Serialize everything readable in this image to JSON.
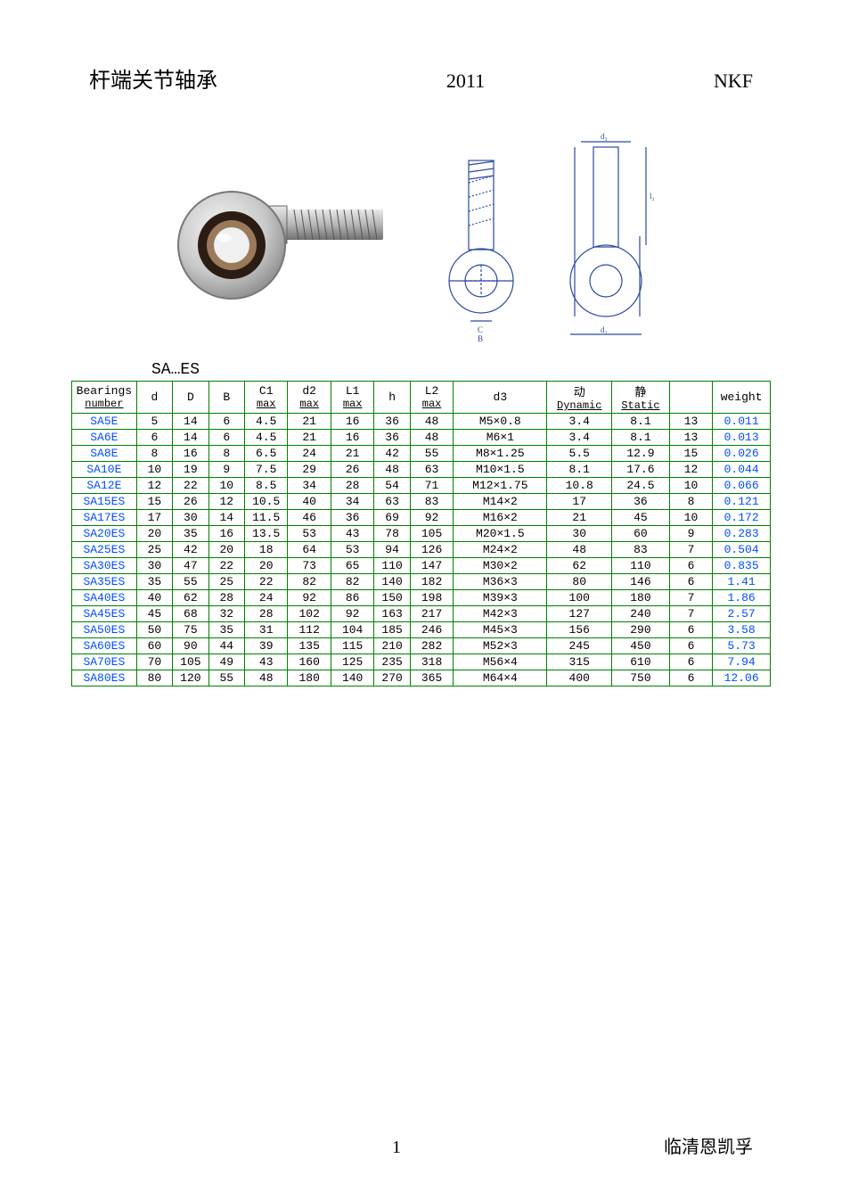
{
  "header": {
    "title_cn": "杆端关节轴承",
    "year": "2011",
    "brand": "NKF"
  },
  "series_label": "SA…ES",
  "table": {
    "border_color": "#008000",
    "link_color": "#004eff",
    "columns": [
      {
        "label_line1": "Bearings",
        "label_line2": "number",
        "underline2": true
      },
      {
        "label_line1": "d"
      },
      {
        "label_line1": "D"
      },
      {
        "label_line1": "B"
      },
      {
        "label_line1": "C1",
        "label_line2": "max",
        "underline2": true
      },
      {
        "label_line1": "d2",
        "label_line2": "max",
        "underline2": true
      },
      {
        "label_line1": "L1",
        "label_line2": "max",
        "underline2": true
      },
      {
        "label_line1": "h"
      },
      {
        "label_line1": "L2",
        "label_line2": "max",
        "underline2": true
      },
      {
        "label_line1": "d3"
      },
      {
        "label_line1": "动",
        "label_line2": "Dynamic",
        "underline2": true
      },
      {
        "label_line1": "静",
        "label_line2": "Static",
        "underline2": true
      },
      {
        "label_line1": ""
      },
      {
        "label_line1": "weight"
      }
    ],
    "rows": [
      [
        "SA5E",
        "5",
        "14",
        "6",
        "4.5",
        "21",
        "16",
        "36",
        "48",
        "M5×0.8",
        "3.4",
        "8.1",
        "13",
        "0.011"
      ],
      [
        "SA6E",
        "6",
        "14",
        "6",
        "4.5",
        "21",
        "16",
        "36",
        "48",
        "M6×1",
        "3.4",
        "8.1",
        "13",
        "0.013"
      ],
      [
        "SA8E",
        "8",
        "16",
        "8",
        "6.5",
        "24",
        "21",
        "42",
        "55",
        "M8×1.25",
        "5.5",
        "12.9",
        "15",
        "0.026"
      ],
      [
        "SA10E",
        "10",
        "19",
        "9",
        "7.5",
        "29",
        "26",
        "48",
        "63",
        "M10×1.5",
        "8.1",
        "17.6",
        "12",
        "0.044"
      ],
      [
        "SA12E",
        "12",
        "22",
        "10",
        "8.5",
        "34",
        "28",
        "54",
        "71",
        "M12×1.75",
        "10.8",
        "24.5",
        "10",
        "0.066"
      ],
      [
        "SA15ES",
        "15",
        "26",
        "12",
        "10.5",
        "40",
        "34",
        "63",
        "83",
        "M14×2",
        "17",
        "36",
        "8",
        "0.121"
      ],
      [
        "SA17ES",
        "17",
        "30",
        "14",
        "11.5",
        "46",
        "36",
        "69",
        "92",
        "M16×2",
        "21",
        "45",
        "10",
        "0.172"
      ],
      [
        "SA20ES",
        "20",
        "35",
        "16",
        "13.5",
        "53",
        "43",
        "78",
        "105",
        "M20×1.5",
        "30",
        "60",
        "9",
        "0.283"
      ],
      [
        "SA25ES",
        "25",
        "42",
        "20",
        "18",
        "64",
        "53",
        "94",
        "126",
        "M24×2",
        "48",
        "83",
        "7",
        "0.504"
      ],
      [
        "SA30ES",
        "30",
        "47",
        "22",
        "20",
        "73",
        "65",
        "110",
        "147",
        "M30×2",
        "62",
        "110",
        "6",
        "0.835"
      ],
      [
        "SA35ES",
        "35",
        "55",
        "25",
        "22",
        "82",
        "82",
        "140",
        "182",
        "M36×3",
        "80",
        "146",
        "6",
        "1.41"
      ],
      [
        "SA40ES",
        "40",
        "62",
        "28",
        "24",
        "92",
        "86",
        "150",
        "198",
        "M39×3",
        "100",
        "180",
        "7",
        "1.86"
      ],
      [
        "SA45ES",
        "45",
        "68",
        "32",
        "28",
        "102",
        "92",
        "163",
        "217",
        "M42×3",
        "127",
        "240",
        "7",
        "2.57"
      ],
      [
        "SA50ES",
        "50",
        "75",
        "35",
        "31",
        "112",
        "104",
        "185",
        "246",
        "M45×3",
        "156",
        "290",
        "6",
        "3.58"
      ],
      [
        "SA60ES",
        "60",
        "90",
        "44",
        "39",
        "135",
        "115",
        "210",
        "282",
        "M52×3",
        "245",
        "450",
        "6",
        "5.73"
      ],
      [
        "SA70ES",
        "70",
        "105",
        "49",
        "43",
        "160",
        "125",
        "235",
        "318",
        "M56×4",
        "315",
        "610",
        "6",
        "7.94"
      ],
      [
        "SA80ES",
        "80",
        "120",
        "55",
        "48",
        "180",
        "140",
        "270",
        "365",
        "M64×4",
        "400",
        "750",
        "6",
        "12.06"
      ]
    ]
  },
  "footer": {
    "page_number": "1",
    "company": "临清恩凯孚"
  },
  "colors": {
    "text": "#000000",
    "background": "#ffffff",
    "diagram_line": "#2a4aa0"
  }
}
